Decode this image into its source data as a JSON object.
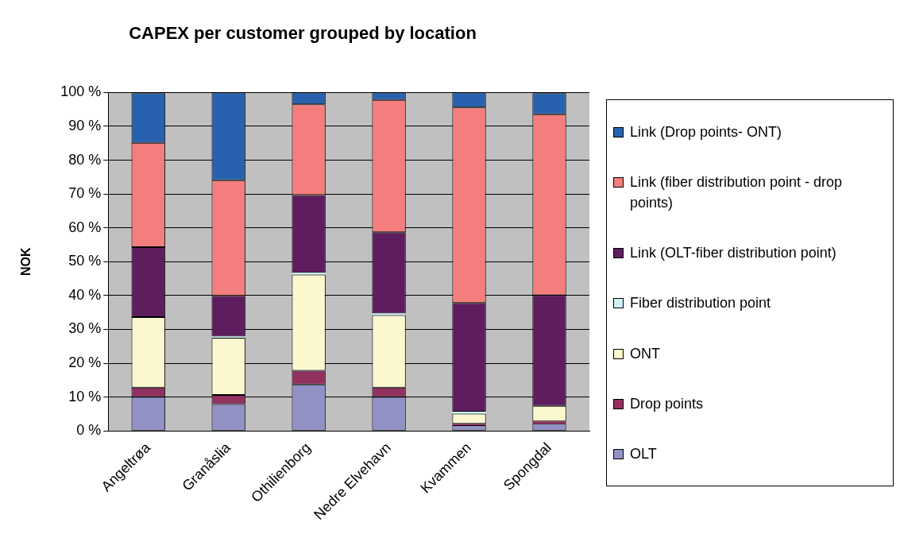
{
  "chart_data": {
    "type": "bar",
    "title": "CAPEX per customer grouped by location",
    "ylabel": "NOK",
    "stacked": true,
    "legend": "right",
    "grid": "y",
    "categories": [
      "Angeltrøa",
      "Granåslia",
      "Othilienborg",
      "Nedre Elvehavn",
      "Kvammen",
      "Spongdal"
    ],
    "ylim": [
      0,
      100
    ],
    "yticks": [
      {
        "value": 0,
        "label": "0 %"
      },
      {
        "value": 10,
        "label": "10 %"
      },
      {
        "value": 20,
        "label": "20 %"
      },
      {
        "value": 30,
        "label": "30 %"
      },
      {
        "value": 40,
        "label": "40 %"
      },
      {
        "value": 50,
        "label": "50 %"
      },
      {
        "value": 60,
        "label": "60 %"
      },
      {
        "value": 70,
        "label": "70 %"
      },
      {
        "value": 80,
        "label": "80 %"
      },
      {
        "value": 90,
        "label": "90 %"
      },
      {
        "value": 100,
        "label": "100 %"
      }
    ],
    "series": [
      {
        "name": "OLT",
        "color": "#9191c6",
        "values": [
          10,
          7.9,
          13.7,
          10,
          1.7,
          2.1
        ]
      },
      {
        "name": "Drop points",
        "color": "#923060",
        "values": [
          2.8,
          2.7,
          4.1,
          2.8,
          0.4,
          0.7
        ]
      },
      {
        "name": "ONT",
        "color": "#fbf7cf",
        "values": [
          20.8,
          16.9,
          28.4,
          21.4,
          3,
          4.6
        ]
      },
      {
        "name": "Fiber distribution point",
        "color": "#ccf2f5",
        "values": [
          null,
          0.4,
          0.5,
          0.5,
          0.6,
          null
        ]
      },
      {
        "name": "Link (OLT-fiber distribution point)",
        "color": "#5e1d5e",
        "values": [
          20.7,
          12,
          23,
          24,
          32.1,
          32.7
        ]
      },
      {
        "name": "Link (fiber distribution point - drop points)",
        "color": "#f37e7d",
        "values": [
          30.8,
          34.2,
          26.8,
          39.1,
          57.8,
          53.5
        ]
      },
      {
        "name": "Link (Drop points- ONT)",
        "color": "#2862ae",
        "values": [
          14.7,
          25.9,
          3.5,
          2.2,
          4.4,
          6.2
        ]
      }
    ]
  }
}
